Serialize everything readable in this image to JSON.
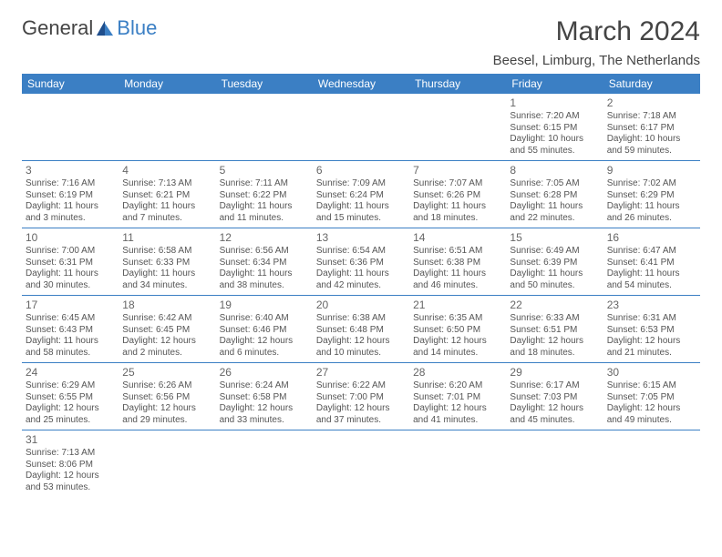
{
  "logo": {
    "part1": "General",
    "part2": "Blue",
    "brand_color": "#3b7fc4"
  },
  "title": "March 2024",
  "location": "Beesel, Limburg, The Netherlands",
  "day_headers": [
    "Sunday",
    "Monday",
    "Tuesday",
    "Wednesday",
    "Thursday",
    "Friday",
    "Saturday"
  ],
  "colors": {
    "header_bg": "#3b7fc4",
    "text": "#555555",
    "border": "#3b7fc4"
  },
  "weeks": [
    [
      null,
      null,
      null,
      null,
      null,
      {
        "num": "1",
        "sunrise": "Sunrise: 7:20 AM",
        "sunset": "Sunset: 6:15 PM",
        "daylight": "Daylight: 10 hours and 55 minutes."
      },
      {
        "num": "2",
        "sunrise": "Sunrise: 7:18 AM",
        "sunset": "Sunset: 6:17 PM",
        "daylight": "Daylight: 10 hours and 59 minutes."
      }
    ],
    [
      {
        "num": "3",
        "sunrise": "Sunrise: 7:16 AM",
        "sunset": "Sunset: 6:19 PM",
        "daylight": "Daylight: 11 hours and 3 minutes."
      },
      {
        "num": "4",
        "sunrise": "Sunrise: 7:13 AM",
        "sunset": "Sunset: 6:21 PM",
        "daylight": "Daylight: 11 hours and 7 minutes."
      },
      {
        "num": "5",
        "sunrise": "Sunrise: 7:11 AM",
        "sunset": "Sunset: 6:22 PM",
        "daylight": "Daylight: 11 hours and 11 minutes."
      },
      {
        "num": "6",
        "sunrise": "Sunrise: 7:09 AM",
        "sunset": "Sunset: 6:24 PM",
        "daylight": "Daylight: 11 hours and 15 minutes."
      },
      {
        "num": "7",
        "sunrise": "Sunrise: 7:07 AM",
        "sunset": "Sunset: 6:26 PM",
        "daylight": "Daylight: 11 hours and 18 minutes."
      },
      {
        "num": "8",
        "sunrise": "Sunrise: 7:05 AM",
        "sunset": "Sunset: 6:28 PM",
        "daylight": "Daylight: 11 hours and 22 minutes."
      },
      {
        "num": "9",
        "sunrise": "Sunrise: 7:02 AM",
        "sunset": "Sunset: 6:29 PM",
        "daylight": "Daylight: 11 hours and 26 minutes."
      }
    ],
    [
      {
        "num": "10",
        "sunrise": "Sunrise: 7:00 AM",
        "sunset": "Sunset: 6:31 PM",
        "daylight": "Daylight: 11 hours and 30 minutes."
      },
      {
        "num": "11",
        "sunrise": "Sunrise: 6:58 AM",
        "sunset": "Sunset: 6:33 PM",
        "daylight": "Daylight: 11 hours and 34 minutes."
      },
      {
        "num": "12",
        "sunrise": "Sunrise: 6:56 AM",
        "sunset": "Sunset: 6:34 PM",
        "daylight": "Daylight: 11 hours and 38 minutes."
      },
      {
        "num": "13",
        "sunrise": "Sunrise: 6:54 AM",
        "sunset": "Sunset: 6:36 PM",
        "daylight": "Daylight: 11 hours and 42 minutes."
      },
      {
        "num": "14",
        "sunrise": "Sunrise: 6:51 AM",
        "sunset": "Sunset: 6:38 PM",
        "daylight": "Daylight: 11 hours and 46 minutes."
      },
      {
        "num": "15",
        "sunrise": "Sunrise: 6:49 AM",
        "sunset": "Sunset: 6:39 PM",
        "daylight": "Daylight: 11 hours and 50 minutes."
      },
      {
        "num": "16",
        "sunrise": "Sunrise: 6:47 AM",
        "sunset": "Sunset: 6:41 PM",
        "daylight": "Daylight: 11 hours and 54 minutes."
      }
    ],
    [
      {
        "num": "17",
        "sunrise": "Sunrise: 6:45 AM",
        "sunset": "Sunset: 6:43 PM",
        "daylight": "Daylight: 11 hours and 58 minutes."
      },
      {
        "num": "18",
        "sunrise": "Sunrise: 6:42 AM",
        "sunset": "Sunset: 6:45 PM",
        "daylight": "Daylight: 12 hours and 2 minutes."
      },
      {
        "num": "19",
        "sunrise": "Sunrise: 6:40 AM",
        "sunset": "Sunset: 6:46 PM",
        "daylight": "Daylight: 12 hours and 6 minutes."
      },
      {
        "num": "20",
        "sunrise": "Sunrise: 6:38 AM",
        "sunset": "Sunset: 6:48 PM",
        "daylight": "Daylight: 12 hours and 10 minutes."
      },
      {
        "num": "21",
        "sunrise": "Sunrise: 6:35 AM",
        "sunset": "Sunset: 6:50 PM",
        "daylight": "Daylight: 12 hours and 14 minutes."
      },
      {
        "num": "22",
        "sunrise": "Sunrise: 6:33 AM",
        "sunset": "Sunset: 6:51 PM",
        "daylight": "Daylight: 12 hours and 18 minutes."
      },
      {
        "num": "23",
        "sunrise": "Sunrise: 6:31 AM",
        "sunset": "Sunset: 6:53 PM",
        "daylight": "Daylight: 12 hours and 21 minutes."
      }
    ],
    [
      {
        "num": "24",
        "sunrise": "Sunrise: 6:29 AM",
        "sunset": "Sunset: 6:55 PM",
        "daylight": "Daylight: 12 hours and 25 minutes."
      },
      {
        "num": "25",
        "sunrise": "Sunrise: 6:26 AM",
        "sunset": "Sunset: 6:56 PM",
        "daylight": "Daylight: 12 hours and 29 minutes."
      },
      {
        "num": "26",
        "sunrise": "Sunrise: 6:24 AM",
        "sunset": "Sunset: 6:58 PM",
        "daylight": "Daylight: 12 hours and 33 minutes."
      },
      {
        "num": "27",
        "sunrise": "Sunrise: 6:22 AM",
        "sunset": "Sunset: 7:00 PM",
        "daylight": "Daylight: 12 hours and 37 minutes."
      },
      {
        "num": "28",
        "sunrise": "Sunrise: 6:20 AM",
        "sunset": "Sunset: 7:01 PM",
        "daylight": "Daylight: 12 hours and 41 minutes."
      },
      {
        "num": "29",
        "sunrise": "Sunrise: 6:17 AM",
        "sunset": "Sunset: 7:03 PM",
        "daylight": "Daylight: 12 hours and 45 minutes."
      },
      {
        "num": "30",
        "sunrise": "Sunrise: 6:15 AM",
        "sunset": "Sunset: 7:05 PM",
        "daylight": "Daylight: 12 hours and 49 minutes."
      }
    ],
    [
      {
        "num": "31",
        "sunrise": "Sunrise: 7:13 AM",
        "sunset": "Sunset: 8:06 PM",
        "daylight": "Daylight: 12 hours and 53 minutes."
      },
      null,
      null,
      null,
      null,
      null,
      null
    ]
  ]
}
